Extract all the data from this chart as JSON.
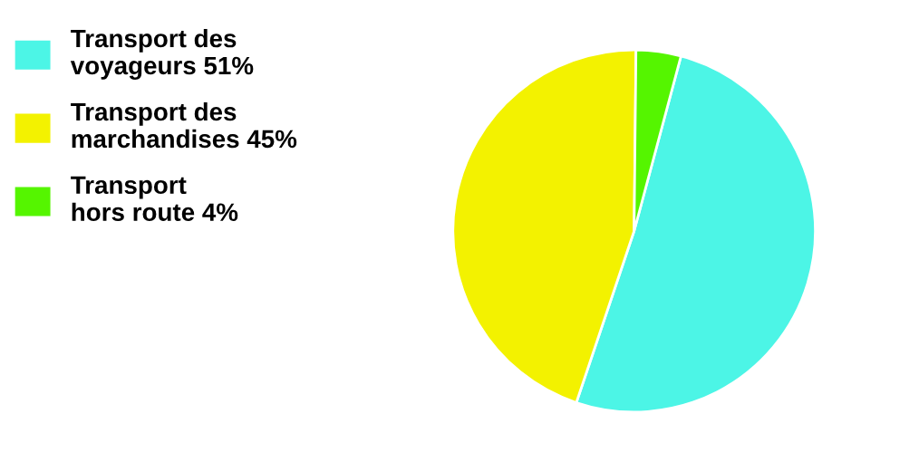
{
  "chart_data": {
    "type": "pie",
    "categories": [
      "Transport des\nvoyageurs 51%",
      "Transport des\nmarchandises 45%",
      "Transport\nhors route 4%"
    ],
    "values": [
      51,
      45,
      4
    ],
    "colors": [
      "#4cf5e6",
      "#f3f200",
      "#55f500"
    ],
    "legend": "left"
  }
}
